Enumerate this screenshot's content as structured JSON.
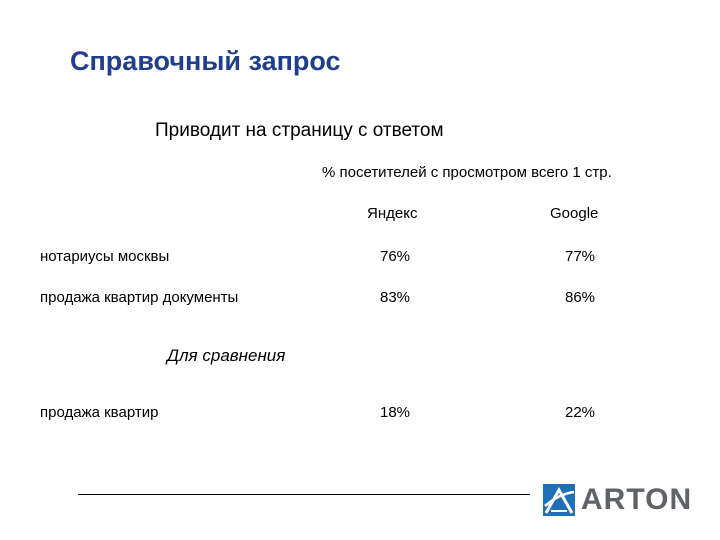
{
  "slide": {
    "title": "Справочный запрос",
    "subtitle": "Приводит на страницу с ответом",
    "metric_caption": "% посетителей с просмотром всего 1 стр."
  },
  "table": {
    "columns": [
      "Яндекс",
      "Google"
    ],
    "rows": [
      {
        "label": "нотариусы москвы",
        "yandex": "76%",
        "google": "77%"
      },
      {
        "label": "продажа квартир документы",
        "yandex": "83%",
        "google": "86%"
      }
    ],
    "comparison_label": "Для сравнения",
    "comparison_row": {
      "label": "продажа квартир",
      "yandex": "18%",
      "google": "22%"
    }
  },
  "logo": {
    "text": "ARTON",
    "mark_color": "#1f6fb8",
    "text_color": "#5f6266"
  }
}
